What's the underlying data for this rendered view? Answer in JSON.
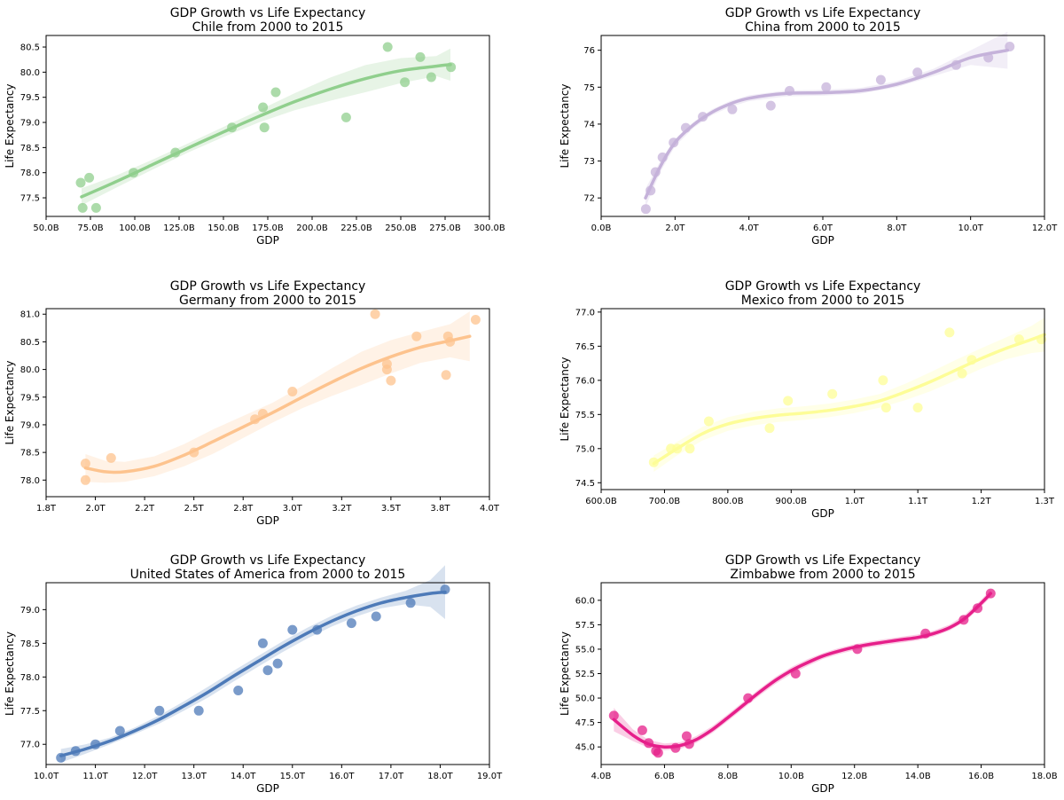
{
  "figure": {
    "subplots": [
      {
        "title": "GDP Growth vs Life Expectancy",
        "subtitle": "Chile from 2000 to 2015"
      },
      {
        "title": "GDP Growth vs Life Expectancy",
        "subtitle": "China from 2000 to 2015"
      },
      {
        "title": "GDP Growth vs Life Expectancy",
        "subtitle": "Germany from 2000 to 2015"
      },
      {
        "title": "GDP Growth vs Life Expectancy",
        "subtitle": "Mexico from 2000 to 2015"
      },
      {
        "title": "GDP Growth vs Life Expectancy",
        "subtitle": "United States of America from 2000 to 2015"
      },
      {
        "title": "GDP Growth vs Life Expectancy",
        "subtitle": "Zimbabwe from 2000 to 2015"
      }
    ]
  },
  "chart_data": [
    {
      "type": "scatter",
      "title": "GDP Growth vs Life Expectancy",
      "subtitle": "Chile from 2000 to 2015",
      "xlabel": "GDP",
      "ylabel": "Life Expectancy",
      "x_unit": "billions USD",
      "xlim": [
        50,
        300
      ],
      "ylim": [
        77.13,
        80.73
      ],
      "xticks": [
        50,
        75,
        100,
        125,
        150,
        175,
        200,
        225,
        250,
        275,
        300
      ],
      "xtick_labels": [
        "50.0B",
        "75.0B",
        "100.0B",
        "125.0B",
        "150.0B",
        "175.0B",
        "200.0B",
        "225.0B",
        "250.0B",
        "275.0B",
        "300.0B"
      ],
      "yticks": [
        77.5,
        78.0,
        78.5,
        79.0,
        79.5,
        80.0,
        80.5
      ],
      "ytick_labels": [
        "77.5",
        "78.0",
        "78.5",
        "79.0",
        "79.5",
        "80.0",
        "80.5"
      ],
      "color": "#90cf8d",
      "grid": false,
      "points": {
        "x": [
          69.5,
          70.6,
          74.3,
          78.2,
          99.3,
          122.9,
          154.8,
          172.3,
          173.1,
          179.5,
          219.2,
          242.6,
          252.3,
          261.0,
          267.2,
          278.3
        ],
        "y": [
          77.8,
          77.3,
          77.9,
          77.3,
          78.0,
          78.4,
          78.9,
          79.3,
          78.9,
          79.6,
          79.1,
          80.5,
          79.8,
          80.3,
          79.9,
          80.1
        ]
      },
      "fit": {
        "x": [
          70,
          90,
          110,
          130,
          150,
          170,
          190,
          210,
          230,
          250,
          270,
          278
        ],
        "y": [
          77.52,
          77.83,
          78.16,
          78.49,
          78.81,
          79.12,
          79.41,
          79.66,
          79.87,
          80.03,
          80.12,
          80.15
        ]
      },
      "ci_halfwidth": [
        0.17,
        0.12,
        0.1,
        0.09,
        0.1,
        0.12,
        0.17,
        0.23,
        0.27,
        0.25,
        0.2,
        0.32
      ]
    },
    {
      "type": "scatter",
      "title": "GDP Growth vs Life Expectancy",
      "subtitle": "China from 2000 to 2015",
      "xlabel": "GDP",
      "ylabel": "Life Expectancy",
      "x_unit": "trillions USD",
      "xlim": [
        0,
        12
      ],
      "ylim": [
        71.5,
        76.4
      ],
      "xticks": [
        0,
        2,
        4,
        6,
        8,
        10,
        12
      ],
      "xtick_labels": [
        "0.0B",
        "2.0T",
        "4.0T",
        "6.0T",
        "8.0T",
        "10.0T",
        "12.0T"
      ],
      "yticks": [
        72,
        73,
        74,
        75,
        76
      ],
      "ytick_labels": [
        "72",
        "73",
        "74",
        "75",
        "76"
      ],
      "color": "#c5b2da",
      "grid": false,
      "points": {
        "x": [
          1.21,
          1.34,
          1.47,
          1.66,
          1.96,
          2.29,
          2.75,
          3.55,
          4.59,
          5.1,
          6.09,
          7.57,
          8.56,
          9.61,
          10.48,
          11.06
        ],
        "y": [
          71.7,
          72.2,
          72.7,
          73.1,
          73.5,
          73.9,
          74.2,
          74.4,
          74.5,
          74.9,
          75.0,
          75.2,
          75.4,
          75.6,
          75.8,
          76.1
        ]
      },
      "fit": {
        "x": [
          1.2,
          1.6,
          2.0,
          2.5,
          3.0,
          3.5,
          4.0,
          5.0,
          6.0,
          7.0,
          8.0,
          9.0,
          10.0,
          11.0
        ],
        "y": [
          72.0,
          72.85,
          73.5,
          73.98,
          74.32,
          74.55,
          74.7,
          74.83,
          74.85,
          74.9,
          75.08,
          75.4,
          75.8,
          76.0
        ]
      },
      "ci_halfwidth": [
        0.25,
        0.15,
        0.1,
        0.08,
        0.08,
        0.08,
        0.08,
        0.08,
        0.08,
        0.08,
        0.08,
        0.1,
        0.2,
        0.5
      ]
    },
    {
      "type": "scatter",
      "title": "GDP Growth vs Life Expectancy",
      "subtitle": "Germany from 2000 to 2015",
      "xlabel": "GDP",
      "ylabel": "Life Expectancy",
      "x_unit": "trillions USD",
      "xlim": [
        1.75,
        4.0
      ],
      "ylim": [
        77.7,
        81.1
      ],
      "xticks": [
        1.75,
        2.0,
        2.25,
        2.5,
        2.75,
        3.0,
        3.25,
        3.5,
        3.75,
        4.0
      ],
      "xtick_labels": [
        "1.8T",
        "2.0T",
        "2.2T",
        "2.5T",
        "2.8T",
        "3.0T",
        "3.2T",
        "3.5T",
        "3.8T",
        "4.0T"
      ],
      "yticks": [
        78.0,
        78.5,
        79.0,
        79.5,
        80.0,
        80.5,
        81.0
      ],
      "ytick_labels": [
        "78.0",
        "78.5",
        "79.0",
        "79.5",
        "80.0",
        "80.5",
        "81.0"
      ],
      "color": "#fdc38e",
      "grid": false,
      "points": {
        "x": [
          1.95,
          1.95,
          2.08,
          2.5,
          2.81,
          2.85,
          3.0,
          3.42,
          3.48,
          3.48,
          3.5,
          3.63,
          3.78,
          3.79,
          3.8,
          3.93
        ],
        "y": [
          78.3,
          78.0,
          78.4,
          78.5,
          79.1,
          79.2,
          79.6,
          81.0,
          80.1,
          80.0,
          79.8,
          80.6,
          79.9,
          80.6,
          80.5,
          80.9
        ]
      },
      "fit": {
        "x": [
          1.95,
          2.05,
          2.15,
          2.3,
          2.45,
          2.6,
          2.75,
          2.9,
          3.05,
          3.2,
          3.35,
          3.5,
          3.65,
          3.8,
          3.9
        ],
        "y": [
          78.22,
          78.15,
          78.15,
          78.25,
          78.45,
          78.7,
          78.96,
          79.22,
          79.5,
          79.77,
          80.02,
          80.23,
          80.4,
          80.52,
          80.6
        ]
      },
      "ci_halfwidth": [
        0.25,
        0.2,
        0.18,
        0.18,
        0.2,
        0.22,
        0.2,
        0.18,
        0.2,
        0.25,
        0.3,
        0.3,
        0.28,
        0.3,
        0.45
      ]
    },
    {
      "type": "scatter",
      "title": "GDP Growth vs Life Expectancy",
      "subtitle": "Mexico from 2000 to 2015",
      "xlabel": "GDP",
      "ylabel": "Life Expectancy",
      "x_unit": "billions USD",
      "xlim": [
        600,
        1300
      ],
      "ylim": [
        74.4,
        77.05
      ],
      "xticks": [
        600,
        700,
        800,
        900,
        1000,
        1100,
        1200,
        1300
      ],
      "xtick_labels": [
        "600.0B",
        "700.0B",
        "800.0B",
        "900.0B",
        "1.0T",
        "1.1T",
        "1.2T",
        "1.3T"
      ],
      "yticks": [
        74.5,
        75.0,
        75.5,
        76.0,
        76.5,
        77.0
      ],
      "ytick_labels": [
        "74.5",
        "75.0",
        "75.5",
        "76.0",
        "76.5",
        "77.0"
      ],
      "color": "#fdfd97",
      "grid": false,
      "points": {
        "x": [
          683,
          710,
          720,
          740,
          770,
          866,
          895,
          965,
          1045,
          1050,
          1100,
          1150,
          1170,
          1185,
          1260,
          1295
        ],
        "y": [
          74.8,
          75.0,
          75.0,
          75.0,
          75.4,
          75.3,
          75.7,
          75.8,
          76.0,
          75.6,
          75.6,
          76.7,
          76.1,
          76.3,
          76.6,
          76.6
        ]
      },
      "fit": {
        "x": [
          683,
          720,
          760,
          800,
          840,
          880,
          920,
          960,
          1000,
          1040,
          1080,
          1120,
          1160,
          1200,
          1240,
          1280,
          1300
        ],
        "y": [
          74.78,
          75.0,
          75.22,
          75.36,
          75.44,
          75.49,
          75.52,
          75.56,
          75.62,
          75.7,
          75.83,
          75.98,
          76.15,
          76.32,
          76.47,
          76.6,
          76.67
        ]
      },
      "ci_halfwidth": [
        0.12,
        0.1,
        0.1,
        0.1,
        0.1,
        0.1,
        0.1,
        0.1,
        0.1,
        0.1,
        0.12,
        0.14,
        0.15,
        0.15,
        0.16,
        0.2,
        0.25
      ]
    },
    {
      "type": "scatter",
      "title": "GDP Growth vs Life Expectancy",
      "subtitle": "United States of America from 2000 to 2015",
      "xlabel": "GDP",
      "ylabel": "Life Expectancy",
      "x_unit": "trillions USD",
      "xlim": [
        10,
        19
      ],
      "ylim": [
        76.7,
        79.4
      ],
      "xticks": [
        10,
        11,
        12,
        13,
        14,
        15,
        16,
        17,
        18,
        19
      ],
      "xtick_labels": [
        "10.0T",
        "11.0T",
        "12.0T",
        "13.0T",
        "14.0T",
        "15.0T",
        "16.0T",
        "17.0T",
        "18.0T",
        "19.0T"
      ],
      "yticks": [
        77.0,
        77.5,
        78.0,
        78.5,
        79.0
      ],
      "ytick_labels": [
        "77.0",
        "77.5",
        "78.0",
        "78.5",
        "79.0"
      ],
      "color": "#4d7ab8",
      "grid": false,
      "points": {
        "x": [
          10.3,
          10.6,
          11.0,
          11.5,
          12.3,
          13.1,
          13.9,
          14.4,
          14.5,
          14.7,
          15.0,
          15.5,
          16.2,
          16.7,
          17.4,
          18.1
        ],
        "y": [
          76.8,
          76.9,
          77.0,
          77.2,
          77.5,
          77.5,
          77.8,
          78.5,
          78.1,
          78.2,
          78.7,
          78.7,
          78.8,
          78.9,
          79.1,
          79.3
        ]
      },
      "fit": {
        "x": [
          10.3,
          10.8,
          11.3,
          11.8,
          12.3,
          12.8,
          13.3,
          13.8,
          14.3,
          14.8,
          15.3,
          15.8,
          16.3,
          16.8,
          17.3,
          17.8,
          18.1
        ],
        "y": [
          76.83,
          76.93,
          77.05,
          77.2,
          77.37,
          77.57,
          77.78,
          78.01,
          78.23,
          78.45,
          78.65,
          78.83,
          78.98,
          79.1,
          79.18,
          79.24,
          79.26
        ]
      },
      "ci_halfwidth": [
        0.1,
        0.07,
        0.05,
        0.05,
        0.06,
        0.07,
        0.08,
        0.08,
        0.08,
        0.08,
        0.08,
        0.08,
        0.08,
        0.08,
        0.1,
        0.2,
        0.4
      ]
    },
    {
      "type": "scatter",
      "title": "GDP Growth vs Life Expectancy",
      "subtitle": "Zimbabwe from 2000 to 2015",
      "xlabel": "GDP",
      "ylabel": "Life Expectancy",
      "x_unit": "billions USD",
      "xlim": [
        4,
        18
      ],
      "ylim": [
        43.2,
        61.8
      ],
      "xticks": [
        4,
        6,
        8,
        10,
        12,
        14,
        16,
        18
      ],
      "xtick_labels": [
        "4.0B",
        "6.0B",
        "8.0B",
        "10.0B",
        "12.0B",
        "14.0B",
        "16.0B",
        "18.0B"
      ],
      "yticks": [
        45.0,
        47.5,
        50.0,
        52.5,
        55.0,
        57.5,
        60.0
      ],
      "ytick_labels": [
        "45.0",
        "47.5",
        "50.0",
        "52.5",
        "55.0",
        "57.5",
        "60.0"
      ],
      "color": "#e61f8a",
      "grid": false,
      "points": {
        "x": [
          4.4,
          5.3,
          5.5,
          5.73,
          5.8,
          6.35,
          6.7,
          6.78,
          8.64,
          10.14,
          12.09,
          14.24,
          15.45,
          15.89,
          16.3
        ],
        "y": [
          48.2,
          46.7,
          45.4,
          44.6,
          44.4,
          44.9,
          46.1,
          45.3,
          50.0,
          52.5,
          55.0,
          56.6,
          58.0,
          59.2,
          60.7
        ]
      },
      "fit": {
        "x": [
          4.4,
          5.0,
          5.5,
          6.0,
          6.5,
          7.0,
          7.5,
          8.0,
          8.5,
          9.0,
          9.5,
          10.0,
          10.5,
          11.0,
          11.5,
          12.0,
          12.5,
          13.0,
          13.5,
          14.0,
          14.5,
          15.0,
          15.5,
          16.0,
          16.3
        ],
        "y": [
          47.8,
          46.2,
          45.3,
          45.0,
          45.15,
          45.75,
          46.75,
          48.0,
          49.3,
          50.6,
          51.8,
          52.8,
          53.6,
          54.3,
          54.8,
          55.2,
          55.5,
          55.75,
          55.98,
          56.2,
          56.6,
          57.2,
          58.2,
          59.7,
          60.7
        ]
      },
      "ci_halfwidth": [
        1.2,
        0.6,
        0.4,
        0.35,
        0.35,
        0.35,
        0.35,
        0.35,
        0.35,
        0.35,
        0.35,
        0.35,
        0.35,
        0.3,
        0.3,
        0.3,
        0.3,
        0.3,
        0.3,
        0.3,
        0.3,
        0.3,
        0.35,
        0.35,
        0.4
      ]
    }
  ]
}
